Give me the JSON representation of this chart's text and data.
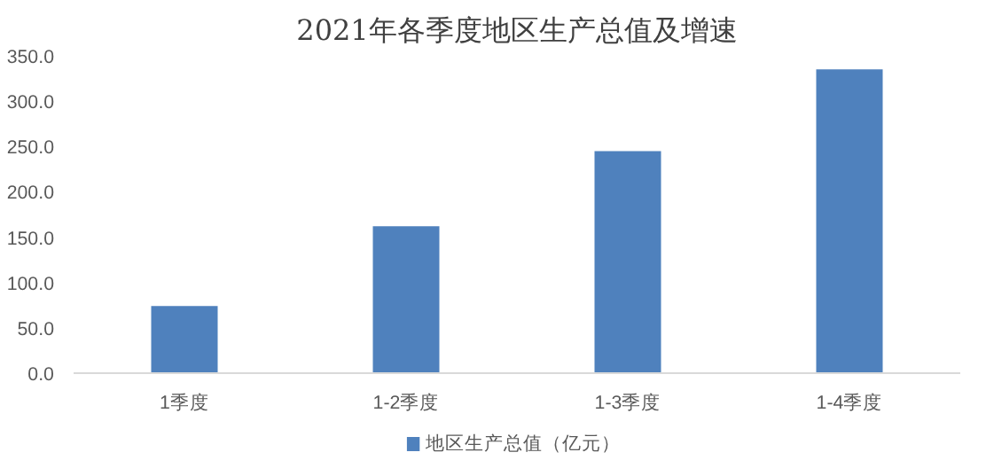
{
  "chart_data": {
    "type": "bar",
    "title": "2021年各季度地区生产总值及增速",
    "categories": [
      "1季度",
      "1-2季度",
      "1-3季度",
      "1-4季度"
    ],
    "series": [
      {
        "name": "地区生产总值（亿元）",
        "color": "#4f81bd",
        "values": [
          74,
          162,
          245,
          335
        ]
      }
    ],
    "ylim": [
      0,
      350
    ],
    "yticks": [
      {
        "value": 0,
        "label": "0.0"
      },
      {
        "value": 50,
        "label": "50.0"
      },
      {
        "value": 100,
        "label": "100.0"
      },
      {
        "value": 150,
        "label": "150.0"
      },
      {
        "value": 200,
        "label": "200.0"
      },
      {
        "value": 250,
        "label": "250.0"
      },
      {
        "value": 300,
        "label": "300.0"
      },
      {
        "value": 350,
        "label": "350.0"
      }
    ],
    "grid": false,
    "legend": "bottom"
  }
}
